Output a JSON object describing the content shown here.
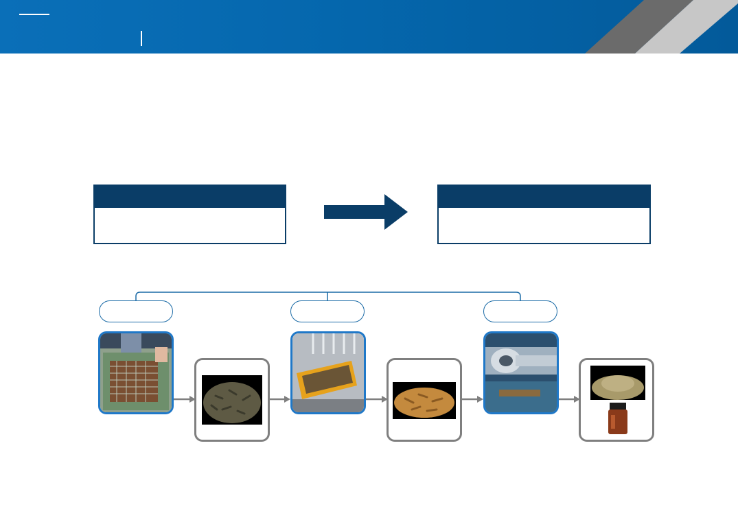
{
  "header": {
    "title": "",
    "subtitle": "",
    "colors": {
      "band": "#0567ad",
      "slash_dark": "#6b6b6b",
      "slash_light": "#c7c7c7"
    }
  },
  "flow": {
    "left_box": {
      "heading": "",
      "body": ""
    },
    "right_box": {
      "heading": "",
      "body": ""
    },
    "arrow_icon": "right-arrow-icon"
  },
  "steps": [
    {
      "label": "",
      "photo": "sieving-larvae-photo"
    },
    {
      "label": "",
      "photo": "tray-of-larvae-photo"
    },
    {
      "label": "",
      "photo": "screw-press-machine-photo"
    }
  ],
  "products": [
    {
      "image": "live-larvae-pile-image"
    },
    {
      "image": "dried-larvae-pile-image"
    },
    {
      "image": "insect-meal-powder-image",
      "image2": "insect-oil-jar-image"
    }
  ],
  "colors": {
    "navy": "#0a3d67",
    "step_border": "#1f78c8",
    "product_border": "#7f7f7f",
    "connector": "#7f7f7f"
  }
}
